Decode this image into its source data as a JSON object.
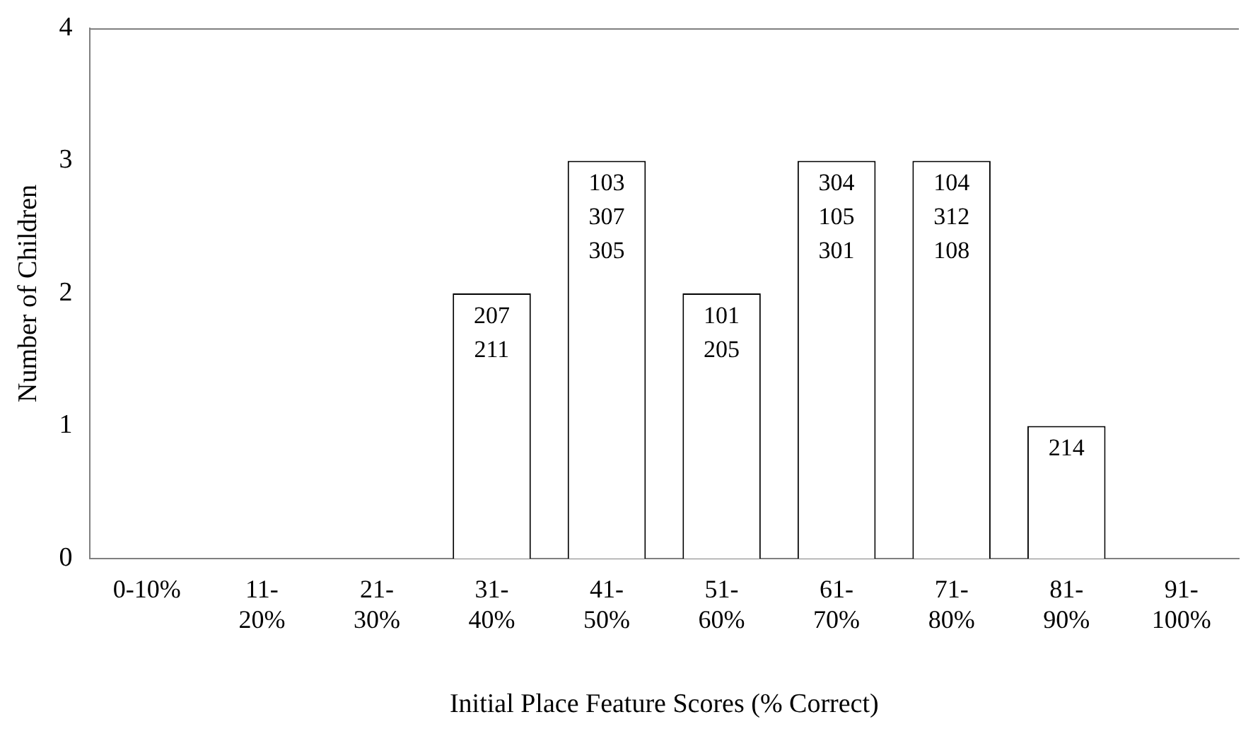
{
  "chart_data": {
    "type": "bar",
    "xlabel": "Initial Place Feature Scores (% Correct)",
    "ylabel": "Number of Children",
    "categories": [
      "0-10%",
      "11-\n20%",
      "21-\n30%",
      "31-\n40%",
      "41-\n50%",
      "51-\n60%",
      "61-\n70%",
      "71-\n80%",
      "81-\n90%",
      "91-\n100%"
    ],
    "values": [
      0,
      0,
      0,
      2,
      3,
      2,
      3,
      3,
      1,
      0
    ],
    "annotations": [
      {
        "text": "207\n211",
        "x": "31-\n40%",
        "y": 2
      },
      {
        "text": "103\n307\n305",
        "x": "41-\n50%",
        "y": 3
      },
      {
        "text": "101\n205",
        "x": "51-\n60%",
        "y": 2
      },
      {
        "text": "304\n105\n301",
        "x": "61-\n70%",
        "y": 3
      },
      {
        "text": "104\n312\n108",
        "x": "71-\n80%",
        "y": 3
      },
      {
        "text": "214",
        "x": "81-\n90%",
        "y": 1
      }
    ],
    "color": "#ffffff",
    "ylim": [
      0,
      4
    ],
    "yticks": [
      0,
      1,
      2,
      3,
      4
    ],
    "grid": false,
    "legend": false
  }
}
